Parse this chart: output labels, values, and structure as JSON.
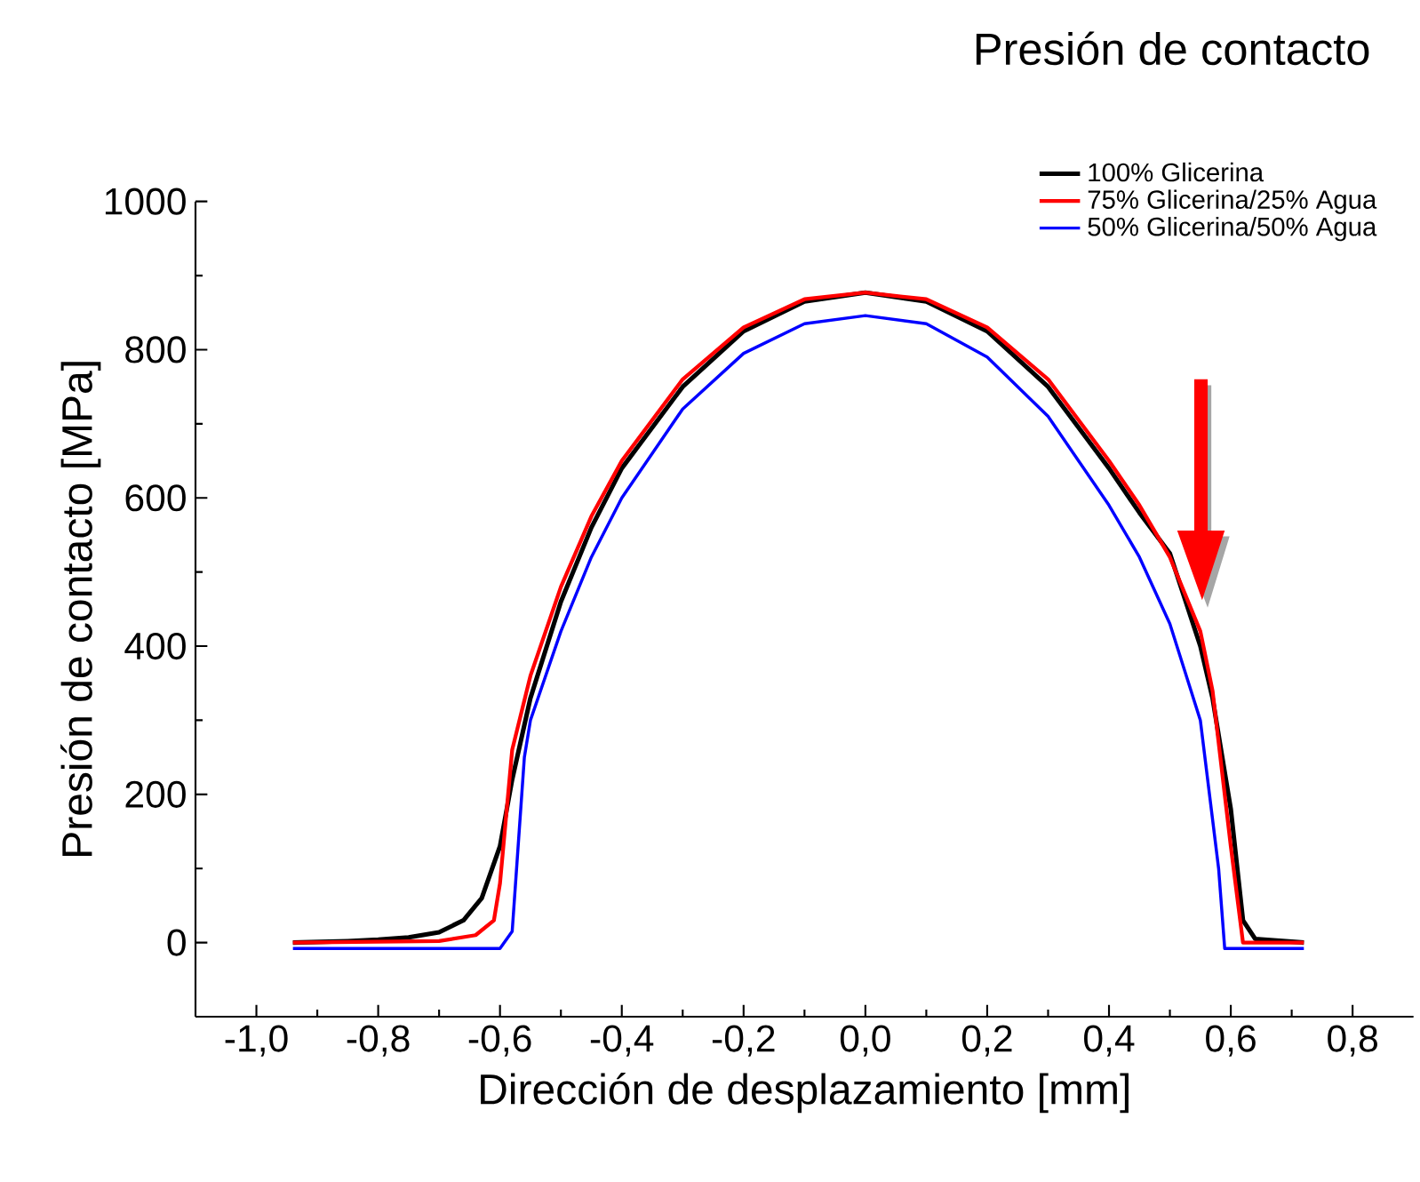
{
  "chart_data": {
    "type": "line",
    "title": "Presión de contacto",
    "xlabel": "Dirección de desplazamiento [mm]",
    "ylabel": "Presión de contacto [MPa]",
    "xlim": [
      -1.1,
      0.9
    ],
    "ylim": [
      -100,
      1000
    ],
    "xticks": [
      {
        "value": -1.0,
        "label": "-1,0"
      },
      {
        "value": -0.8,
        "label": "-0,8"
      },
      {
        "value": -0.6,
        "label": "-0,6"
      },
      {
        "value": -0.4,
        "label": "-0,4"
      },
      {
        "value": -0.2,
        "label": "-0,2"
      },
      {
        "value": 0.0,
        "label": "0,0"
      },
      {
        "value": 0.2,
        "label": "0,2"
      },
      {
        "value": 0.4,
        "label": "0,4"
      },
      {
        "value": 0.6,
        "label": "0,6"
      },
      {
        "value": 0.8,
        "label": "0,8"
      }
    ],
    "yticks": [
      0,
      200,
      400,
      600,
      800,
      1000
    ],
    "grid": false,
    "legend": "top right",
    "marker": "none",
    "line_style": "solid",
    "series": [
      {
        "name": "100% Glicerina",
        "color": "#000000",
        "x": [
          -0.94,
          -0.85,
          -0.8,
          -0.75,
          -0.7,
          -0.66,
          -0.63,
          -0.6,
          -0.58,
          -0.55,
          -0.5,
          -0.45,
          -0.4,
          -0.3,
          -0.2,
          -0.1,
          0,
          0.1,
          0.2,
          0.3,
          0.4,
          0.45,
          0.5,
          0.55,
          0.57,
          0.6,
          0.62,
          0.64,
          0.72
        ],
        "values": [
          0,
          2,
          4,
          7,
          14,
          30,
          60,
          130,
          220,
          330,
          460,
          560,
          640,
          750,
          825,
          865,
          877,
          865,
          825,
          750,
          640,
          580,
          525,
          400,
          330,
          180,
          30,
          5,
          0
        ]
      },
      {
        "name": "75% Glicerina/25% Agua",
        "color": "#ff0000",
        "x": [
          -0.94,
          -0.7,
          -0.64,
          -0.61,
          -0.6,
          -0.58,
          -0.55,
          -0.5,
          -0.45,
          -0.4,
          -0.3,
          -0.2,
          -0.1,
          0,
          0.1,
          0.2,
          0.3,
          0.4,
          0.45,
          0.5,
          0.55,
          0.57,
          0.6,
          0.62,
          0.72
        ],
        "values": [
          0,
          2,
          10,
          30,
          80,
          260,
          360,
          480,
          575,
          650,
          760,
          830,
          868,
          877,
          868,
          830,
          760,
          650,
          590,
          520,
          420,
          340,
          130,
          0,
          0
        ]
      },
      {
        "name": "50% Glicerina/50% Agua",
        "color": "#0000ff",
        "x": [
          -0.94,
          -0.6,
          -0.58,
          -0.56,
          -0.55,
          -0.5,
          -0.45,
          -0.4,
          -0.3,
          -0.2,
          -0.1,
          0,
          0.1,
          0.2,
          0.3,
          0.4,
          0.45,
          0.5,
          0.55,
          0.58,
          0.59,
          0.72
        ],
        "values": [
          -8,
          -8,
          15,
          250,
          300,
          420,
          520,
          600,
          720,
          795,
          835,
          846,
          835,
          790,
          710,
          590,
          520,
          430,
          300,
          100,
          -8,
          -8
        ]
      }
    ]
  }
}
